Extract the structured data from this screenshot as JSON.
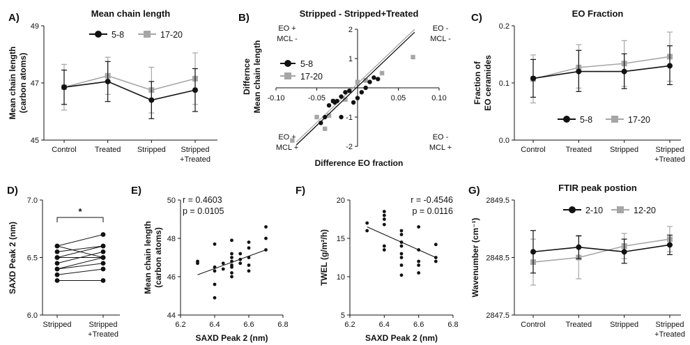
{
  "colors": {
    "series_dark": "#111111",
    "series_light": "#a6a6a6",
    "axis": "#111111"
  },
  "chart_data": [
    {
      "panel": "A)",
      "type": "line",
      "title": "Mean chain length",
      "xlabel": "",
      "ylabel": "Mean chain length (carbon atoms)",
      "ylim": [
        45,
        49
      ],
      "yticks": [
        "45",
        "47",
        "49"
      ],
      "categories": [
        "Control",
        "Treated",
        "Stripped",
        "Stripped +Treated"
      ],
      "legend_position": "top",
      "series": [
        {
          "name": "5-8",
          "color": "#111111",
          "marker": "circle",
          "values": [
            46.85,
            47.05,
            46.4,
            46.75
          ],
          "err_lo": [
            0.6,
            0.7,
            0.65,
            0.75
          ],
          "err_hi": [
            0.6,
            0.7,
            0.65,
            0.75
          ]
        },
        {
          "name": "17-20",
          "color": "#a6a6a6",
          "marker": "square",
          "values": [
            46.85,
            47.25,
            46.75,
            47.15
          ],
          "err_lo": [
            0.8,
            0.65,
            0.8,
            0.9
          ],
          "err_hi": [
            0.8,
            0.65,
            0.8,
            0.9
          ]
        }
      ]
    },
    {
      "panel": "B)",
      "type": "scatter",
      "title": "Stripped - Stripped+Treated",
      "xlabel": "Difference EO fraction",
      "ylabel": "Differnce Mean chain length",
      "xlim": [
        -0.1,
        0.1
      ],
      "ylim": [
        -2,
        2
      ],
      "xticks": [
        "-0.10",
        "-0.05",
        "0.05",
        "0.10"
      ],
      "yticks": [
        "-2",
        "-1",
        "1",
        "2"
      ],
      "legend_position": "upper-left",
      "quadrants": {
        "top_left": [
          "EO +",
          "MCL -"
        ],
        "top_right": [
          "EO -",
          "MCL -"
        ],
        "bottom_left": [
          "EO +",
          "MCL +"
        ],
        "bottom_right": [
          "EO -",
          "MCL +"
        ]
      },
      "series": [
        {
          "name": "5-8",
          "color": "#111111",
          "marker": "circle",
          "points": [
            [
              -0.045,
              -1.2
            ],
            [
              -0.04,
              -1.0
            ],
            [
              -0.035,
              -0.6
            ],
            [
              -0.03,
              -0.45
            ],
            [
              -0.028,
              -0.5
            ],
            [
              -0.025,
              -0.45
            ],
            [
              -0.02,
              -0.3
            ],
            [
              -0.02,
              -1.0
            ],
            [
              -0.015,
              -0.15
            ],
            [
              -0.01,
              -0.1
            ],
            [
              -0.005,
              -0.5
            ],
            [
              0.0,
              -0.35
            ],
            [
              0.005,
              -0.15
            ],
            [
              0.01,
              0.0
            ],
            [
              0.015,
              0.2
            ],
            [
              0.02,
              0.35
            ],
            [
              0.025,
              0.3
            ]
          ],
          "fit": [
            [
              -0.075,
              -1.95
            ],
            [
              0.07,
              1.9
            ]
          ]
        },
        {
          "name": "17-20",
          "color": "#a6a6a6",
          "marker": "square",
          "points": [
            [
              -0.08,
              -1.8
            ],
            [
              -0.05,
              -1.0
            ],
            [
              -0.04,
              -1.4
            ],
            [
              -0.035,
              -0.95
            ],
            [
              -0.03,
              -0.45
            ],
            [
              -0.015,
              -0.4
            ],
            [
              0.0,
              0.2
            ],
            [
              0.01,
              0.25
            ],
            [
              0.03,
              0.5
            ],
            [
              0.068,
              1.05
            ]
          ],
          "fit": [
            [
              -0.075,
              -1.85
            ],
            [
              0.07,
              2.0
            ]
          ]
        }
      ]
    },
    {
      "panel": "C)",
      "type": "line",
      "title": "EO Fraction",
      "xlabel": "",
      "ylabel": "Fraction of EO ceramides",
      "ylim": [
        0.0,
        0.2
      ],
      "yticks": [
        "0.0",
        "0.1",
        "0.2"
      ],
      "categories": [
        "Control",
        "Treated",
        "Stripped",
        "Stripped +Treated"
      ],
      "legend_position": "bottom",
      "series": [
        {
          "name": "5-8",
          "color": "#111111",
          "marker": "circle",
          "values": [
            0.108,
            0.12,
            0.12,
            0.13
          ],
          "err_lo": [
            0.033,
            0.035,
            0.03,
            0.033
          ],
          "err_hi": [
            0.033,
            0.037,
            0.031,
            0.035
          ]
        },
        {
          "name": "17-20",
          "color": "#a6a6a6",
          "marker": "square",
          "values": [
            0.107,
            0.127,
            0.134,
            0.146
          ],
          "err_lo": [
            0.042,
            0.036,
            0.04,
            0.043
          ],
          "err_hi": [
            0.042,
            0.04,
            0.04,
            0.043
          ]
        }
      ]
    },
    {
      "panel": "D)",
      "type": "line",
      "title": "",
      "xlabel": "",
      "ylabel": "SAXD Peak 2 (nm)",
      "ylim": [
        6.0,
        7.0
      ],
      "yticks": [
        "6.0",
        "6.5",
        "7.0"
      ],
      "categories": [
        "Stripped",
        "Stripped +Treated"
      ],
      "annotation": "*",
      "pairs": [
        [
          6.6,
          6.7
        ],
        [
          6.6,
          6.5
        ],
        [
          6.55,
          6.6
        ],
        [
          6.5,
          6.6
        ],
        [
          6.5,
          6.5
        ],
        [
          6.45,
          6.55
        ],
        [
          6.4,
          6.5
        ],
        [
          6.4,
          6.45
        ],
        [
          6.35,
          6.4
        ],
        [
          6.3,
          6.3
        ]
      ]
    },
    {
      "panel": "E)",
      "type": "scatter",
      "title": "",
      "xlabel": "SAXD Peak 2 (nm)",
      "ylabel": "Mean chain length (carbon atoms)",
      "xlim": [
        6.2,
        6.8
      ],
      "ylim": [
        44,
        50
      ],
      "xticks": [
        "6.2",
        "6.4",
        "6.6",
        "6.8"
      ],
      "yticks": [
        "44",
        "46",
        "48",
        "50"
      ],
      "stats": {
        "r": "r = 0.4603",
        "p": "p = 0.0105"
      },
      "points": [
        [
          6.3,
          46.8
        ],
        [
          6.3,
          46.7
        ],
        [
          6.4,
          47.7
        ],
        [
          6.4,
          46.5
        ],
        [
          6.4,
          46.3
        ],
        [
          6.4,
          45.6
        ],
        [
          6.4,
          44.9
        ],
        [
          6.45,
          46.7
        ],
        [
          6.45,
          46.4
        ],
        [
          6.5,
          47.9
        ],
        [
          6.5,
          47.2
        ],
        [
          6.5,
          47.0
        ],
        [
          6.5,
          46.8
        ],
        [
          6.5,
          46.6
        ],
        [
          6.5,
          46.5
        ],
        [
          6.5,
          46.2
        ],
        [
          6.5,
          46.0
        ],
        [
          6.55,
          47.2
        ],
        [
          6.55,
          46.9
        ],
        [
          6.55,
          46.7
        ],
        [
          6.6,
          47.8
        ],
        [
          6.6,
          47.5
        ],
        [
          6.6,
          47.0
        ],
        [
          6.6,
          46.6
        ],
        [
          6.6,
          46.3
        ],
        [
          6.7,
          48.6
        ],
        [
          6.7,
          48.0
        ],
        [
          6.7,
          47.4
        ]
      ],
      "fit": [
        [
          6.3,
          46.1
        ],
        [
          6.7,
          47.4
        ]
      ]
    },
    {
      "panel": "F)",
      "type": "scatter",
      "title": "",
      "xlabel": "SAXD Peak 2 (nm)",
      "ylabel": "TWEL (g/m²/h)",
      "xlim": [
        6.2,
        6.8
      ],
      "ylim": [
        5,
        20
      ],
      "xticks": [
        "6.2",
        "6.4",
        "6.6",
        "6.8"
      ],
      "yticks": [
        "5",
        "10",
        "15",
        "20"
      ],
      "stats": {
        "r": "r = -0.4546",
        "p": "p = 0.0116"
      },
      "points": [
        [
          6.3,
          17.0
        ],
        [
          6.3,
          16.0
        ],
        [
          6.4,
          18.5
        ],
        [
          6.4,
          18.0
        ],
        [
          6.4,
          17.5
        ],
        [
          6.4,
          16.8
        ],
        [
          6.4,
          14.0
        ],
        [
          6.4,
          13.5
        ],
        [
          6.5,
          16.0
        ],
        [
          6.5,
          15.5
        ],
        [
          6.5,
          14.5
        ],
        [
          6.5,
          14.0
        ],
        [
          6.5,
          13.0
        ],
        [
          6.5,
          12.5
        ],
        [
          6.5,
          11.5
        ],
        [
          6.5,
          10.2
        ],
        [
          6.6,
          16.5
        ],
        [
          6.6,
          13.5
        ],
        [
          6.6,
          12.0
        ],
        [
          6.6,
          11.5
        ],
        [
          6.6,
          10.5
        ],
        [
          6.7,
          14.2
        ],
        [
          6.7,
          12.5
        ],
        [
          6.7,
          12.0
        ]
      ],
      "fit": [
        [
          6.3,
          16.5
        ],
        [
          6.7,
          12.5
        ]
      ]
    },
    {
      "panel": "G)",
      "type": "line",
      "title": "FTIR peak postion",
      "xlabel": "",
      "ylabel": "Wavenumber (cm⁻¹)",
      "ylim": [
        2847.5,
        2849.5
      ],
      "yticks": [
        "2847.5",
        "2848.5",
        "2849.5"
      ],
      "categories": [
        "Control",
        "Treated",
        "Stripped",
        "Stripped +Treated"
      ],
      "legend_position": "top",
      "series": [
        {
          "name": "2-10",
          "color": "#111111",
          "marker": "circle",
          "values": [
            2848.6,
            2848.68,
            2848.6,
            2848.72
          ],
          "err_lo": [
            0.37,
            0.2,
            0.2,
            0.17
          ],
          "err_hi": [
            0.37,
            0.2,
            0.22,
            0.17
          ]
        },
        {
          "name": "12-20",
          "color": "#a6a6a6",
          "marker": "square",
          "values": [
            2848.42,
            2848.5,
            2848.7,
            2848.82
          ],
          "err_lo": [
            0.4,
            0.37,
            0.22,
            0.22
          ],
          "err_hi": [
            0.4,
            0.37,
            0.22,
            0.22
          ]
        }
      ]
    }
  ]
}
